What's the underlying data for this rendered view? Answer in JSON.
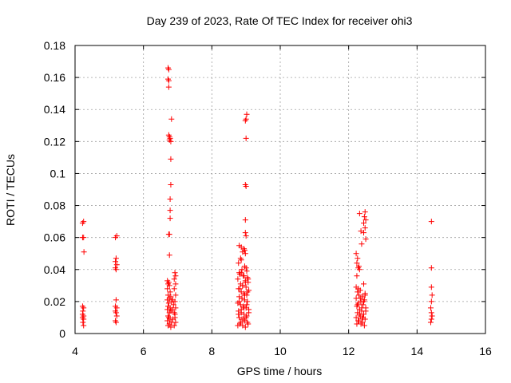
{
  "chart_data": {
    "type": "scatter",
    "title": "Day 239 of 2023, Rate Of TEC Index for receiver ohi3",
    "xlabel": "GPS time / hours",
    "ylabel": "ROTI / TECUs",
    "xlim": [
      4,
      16
    ],
    "ylim": [
      0,
      0.18
    ],
    "xticks": [
      "4",
      "6",
      "8",
      "10",
      "12",
      "14",
      "16"
    ],
    "yticks": [
      "0",
      "0.02",
      "0.04",
      "0.06",
      "0.08",
      "0.1",
      "0.12",
      "0.14",
      "0.16",
      "0.18"
    ],
    "grid": true,
    "marker": "plus",
    "color": "#ff0000",
    "points": [
      [
        4.22,
        0.069
      ],
      [
        4.25,
        0.07
      ],
      [
        4.22,
        0.06
      ],
      [
        4.25,
        0.06
      ],
      [
        4.26,
        0.051
      ],
      [
        4.22,
        0.017
      ],
      [
        4.25,
        0.016
      ],
      [
        4.23,
        0.014
      ],
      [
        4.22,
        0.012
      ],
      [
        4.25,
        0.011
      ],
      [
        4.22,
        0.01
      ],
      [
        4.25,
        0.009
      ],
      [
        4.23,
        0.007
      ],
      [
        4.25,
        0.005
      ],
      [
        5.18,
        0.06
      ],
      [
        5.22,
        0.061
      ],
      [
        5.2,
        0.047
      ],
      [
        5.18,
        0.045
      ],
      [
        5.22,
        0.043
      ],
      [
        5.18,
        0.041
      ],
      [
        5.2,
        0.04
      ],
      [
        5.2,
        0.021
      ],
      [
        5.18,
        0.017
      ],
      [
        5.22,
        0.016
      ],
      [
        5.18,
        0.014
      ],
      [
        5.2,
        0.013
      ],
      [
        5.22,
        0.011
      ],
      [
        5.18,
        0.008
      ],
      [
        5.2,
        0.007
      ],
      [
        6.72,
        0.166
      ],
      [
        6.74,
        0.165
      ],
      [
        6.72,
        0.159
      ],
      [
        6.74,
        0.158
      ],
      [
        6.74,
        0.154
      ],
      [
        6.82,
        0.134
      ],
      [
        6.74,
        0.124
      ],
      [
        6.76,
        0.123
      ],
      [
        6.78,
        0.122
      ],
      [
        6.76,
        0.121
      ],
      [
        6.8,
        0.12
      ],
      [
        6.8,
        0.109
      ],
      [
        6.8,
        0.093
      ],
      [
        6.78,
        0.084
      ],
      [
        6.78,
        0.077
      ],
      [
        6.78,
        0.072
      ],
      [
        6.74,
        0.062
      ],
      [
        6.76,
        0.062
      ],
      [
        6.76,
        0.049
      ],
      [
        6.92,
        0.038
      ],
      [
        6.94,
        0.036
      ],
      [
        6.9,
        0.034
      ],
      [
        6.7,
        0.033
      ],
      [
        6.74,
        0.032
      ],
      [
        6.72,
        0.031
      ],
      [
        6.76,
        0.03
      ],
      [
        6.7,
        0.028
      ],
      [
        6.78,
        0.026
      ],
      [
        6.72,
        0.024
      ],
      [
        6.8,
        0.023
      ],
      [
        6.76,
        0.022
      ],
      [
        6.7,
        0.021
      ],
      [
        6.82,
        0.02
      ],
      [
        6.74,
        0.019
      ],
      [
        6.88,
        0.018
      ],
      [
        6.72,
        0.017
      ],
      [
        6.78,
        0.016
      ],
      [
        6.7,
        0.015
      ],
      [
        6.8,
        0.014
      ],
      [
        6.76,
        0.013
      ],
      [
        6.92,
        0.012
      ],
      [
        6.72,
        0.011
      ],
      [
        6.74,
        0.01
      ],
      [
        6.78,
        0.009
      ],
      [
        6.7,
        0.008
      ],
      [
        6.82,
        0.007
      ],
      [
        6.76,
        0.006
      ],
      [
        6.72,
        0.005
      ],
      [
        6.9,
        0.005
      ],
      [
        6.94,
        0.007
      ],
      [
        6.92,
        0.01
      ],
      [
        6.9,
        0.013
      ],
      [
        6.94,
        0.016
      ],
      [
        6.92,
        0.02
      ],
      [
        6.94,
        0.024
      ],
      [
        6.9,
        0.028
      ],
      [
        6.94,
        0.031
      ],
      [
        6.8,
        0.004
      ],
      [
        6.86,
        0.009
      ],
      [
        6.84,
        0.015
      ],
      [
        6.86,
        0.021
      ],
      [
        9.02,
        0.137
      ],
      [
        9.0,
        0.134
      ],
      [
        8.98,
        0.133
      ],
      [
        9.0,
        0.122
      ],
      [
        8.98,
        0.093
      ],
      [
        9.0,
        0.092
      ],
      [
        8.98,
        0.071
      ],
      [
        8.98,
        0.063
      ],
      [
        9.0,
        0.061
      ],
      [
        8.8,
        0.055
      ],
      [
        8.86,
        0.054
      ],
      [
        8.94,
        0.053
      ],
      [
        8.96,
        0.052
      ],
      [
        8.9,
        0.051
      ],
      [
        8.98,
        0.05
      ],
      [
        8.84,
        0.047
      ],
      [
        8.86,
        0.046
      ],
      [
        8.78,
        0.044
      ],
      [
        8.96,
        0.042
      ],
      [
        9.0,
        0.041
      ],
      [
        8.88,
        0.04
      ],
      [
        8.8,
        0.038
      ],
      [
        8.82,
        0.037
      ],
      [
        8.94,
        0.036
      ],
      [
        9.04,
        0.035
      ],
      [
        8.76,
        0.034
      ],
      [
        8.98,
        0.033
      ],
      [
        9.06,
        0.032
      ],
      [
        8.84,
        0.031
      ],
      [
        8.9,
        0.03
      ],
      [
        9.0,
        0.029
      ],
      [
        8.78,
        0.028
      ],
      [
        9.08,
        0.027
      ],
      [
        8.86,
        0.026
      ],
      [
        8.94,
        0.025
      ],
      [
        9.02,
        0.024
      ],
      [
        8.8,
        0.023
      ],
      [
        8.88,
        0.022
      ],
      [
        8.96,
        0.021
      ],
      [
        9.04,
        0.02
      ],
      [
        8.76,
        0.019
      ],
      [
        8.84,
        0.018
      ],
      [
        8.92,
        0.017
      ],
      [
        9.0,
        0.016
      ],
      [
        9.08,
        0.015
      ],
      [
        8.78,
        0.014
      ],
      [
        8.86,
        0.013
      ],
      [
        8.94,
        0.012
      ],
      [
        9.02,
        0.011
      ],
      [
        8.8,
        0.01
      ],
      [
        8.88,
        0.009
      ],
      [
        8.96,
        0.008
      ],
      [
        9.04,
        0.007
      ],
      [
        8.82,
        0.006
      ],
      [
        8.9,
        0.005
      ],
      [
        8.98,
        0.004
      ],
      [
        8.76,
        0.005
      ],
      [
        9.06,
        0.006
      ],
      [
        8.84,
        0.007
      ],
      [
        8.92,
        0.009
      ],
      [
        9.0,
        0.01
      ],
      [
        8.78,
        0.012
      ],
      [
        9.08,
        0.013
      ],
      [
        8.86,
        0.015
      ],
      [
        8.94,
        0.016
      ],
      [
        9.02,
        0.018
      ],
      [
        8.8,
        0.02
      ],
      [
        8.88,
        0.022
      ],
      [
        8.96,
        0.024
      ],
      [
        9.04,
        0.026
      ],
      [
        8.82,
        0.028
      ],
      [
        8.9,
        0.03
      ],
      [
        8.98,
        0.032
      ],
      [
        9.06,
        0.034
      ],
      [
        8.92,
        0.036
      ],
      [
        8.86,
        0.038
      ],
      [
        9.02,
        0.039
      ],
      [
        12.32,
        0.075
      ],
      [
        12.48,
        0.076
      ],
      [
        12.46,
        0.073
      ],
      [
        12.5,
        0.071
      ],
      [
        12.44,
        0.069
      ],
      [
        12.48,
        0.066
      ],
      [
        12.36,
        0.064
      ],
      [
        12.44,
        0.063
      ],
      [
        12.5,
        0.059
      ],
      [
        12.38,
        0.056
      ],
      [
        12.22,
        0.05
      ],
      [
        12.26,
        0.047
      ],
      [
        12.24,
        0.044
      ],
      [
        12.3,
        0.042
      ],
      [
        12.28,
        0.041
      ],
      [
        12.32,
        0.04
      ],
      [
        12.24,
        0.036
      ],
      [
        12.44,
        0.031
      ],
      [
        12.22,
        0.029
      ],
      [
        12.28,
        0.028
      ],
      [
        12.34,
        0.027
      ],
      [
        12.26,
        0.026
      ],
      [
        12.48,
        0.025
      ],
      [
        12.3,
        0.024
      ],
      [
        12.4,
        0.023
      ],
      [
        12.22,
        0.022
      ],
      [
        12.46,
        0.021
      ],
      [
        12.36,
        0.02
      ],
      [
        12.28,
        0.019
      ],
      [
        12.42,
        0.018
      ],
      [
        12.24,
        0.017
      ],
      [
        12.5,
        0.016
      ],
      [
        12.32,
        0.015
      ],
      [
        12.38,
        0.014
      ],
      [
        12.26,
        0.013
      ],
      [
        12.44,
        0.012
      ],
      [
        12.34,
        0.011
      ],
      [
        12.22,
        0.01
      ],
      [
        12.48,
        0.009
      ],
      [
        12.3,
        0.008
      ],
      [
        12.4,
        0.007
      ],
      [
        12.24,
        0.006
      ],
      [
        12.46,
        0.005
      ],
      [
        12.36,
        0.006
      ],
      [
        12.28,
        0.008
      ],
      [
        12.42,
        0.01
      ],
      [
        12.32,
        0.012
      ],
      [
        12.5,
        0.014
      ],
      [
        12.38,
        0.016
      ],
      [
        12.26,
        0.018
      ],
      [
        12.44,
        0.02
      ],
      [
        12.34,
        0.022
      ],
      [
        12.48,
        0.024
      ],
      [
        12.4,
        0.009
      ],
      [
        14.42,
        0.07
      ],
      [
        14.42,
        0.041
      ],
      [
        14.42,
        0.029
      ],
      [
        14.44,
        0.024
      ],
      [
        14.42,
        0.02
      ],
      [
        14.4,
        0.016
      ],
      [
        14.42,
        0.013
      ],
      [
        14.44,
        0.011
      ],
      [
        14.42,
        0.009
      ],
      [
        14.4,
        0.007
      ]
    ]
  }
}
